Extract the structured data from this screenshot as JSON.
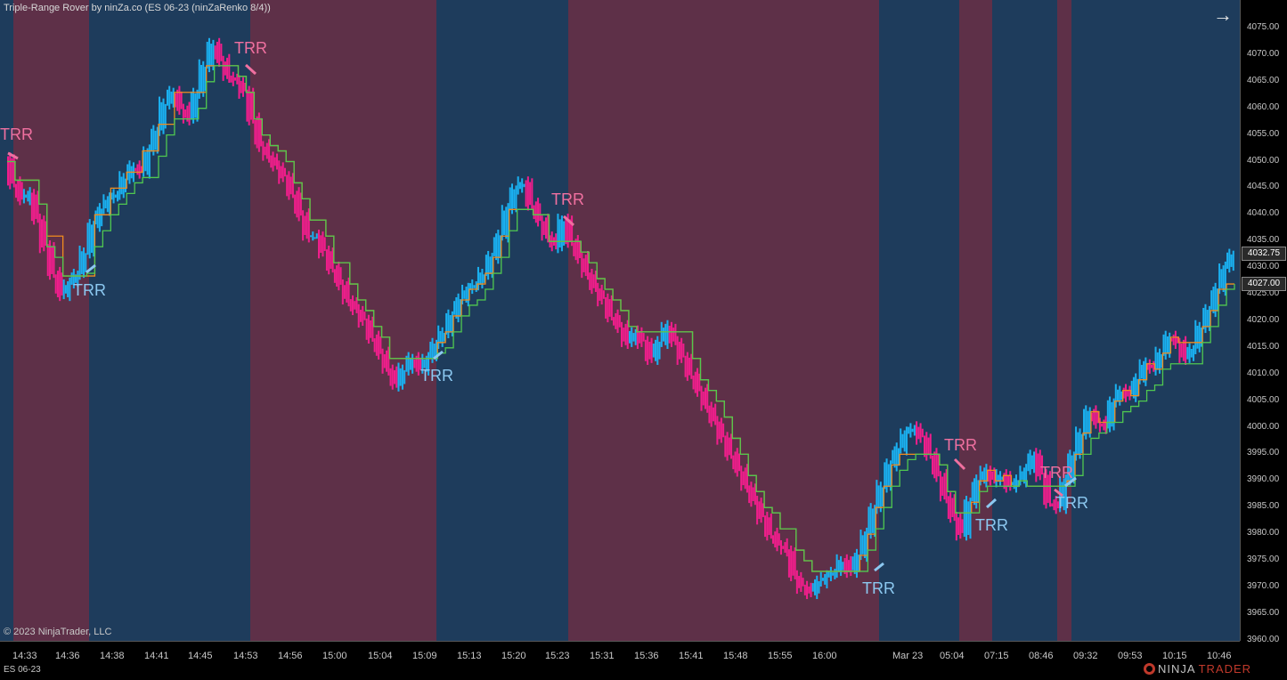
{
  "chart_title": "Triple-Range Rover by ninZa.co (ES 06-23 (ninZaRenko 8/4))",
  "copyright": "© 2023 NinjaTrader, LLC",
  "instrument": "ES 06-23",
  "logo": {
    "part1": "NINJA",
    "part2": "TRADER"
  },
  "colors": {
    "bull_background": "#1e3c5c",
    "bear_background": "#5e3048",
    "bull_bars": "#1ab0f0",
    "bear_bars": "#f01e8c",
    "upper_line": "#f08c1e",
    "lower_line": "#50c850",
    "bull_label": "#8cc8f0",
    "bear_label": "#f070a0"
  },
  "icons": {
    "navigate": "right-arrow-icon"
  },
  "price_axis": {
    "labels": [
      "4075.00",
      "4070.00",
      "4065.00",
      "4060.00",
      "4055.00",
      "4050.00",
      "4045.00",
      "4040.00",
      "4035.00",
      "4030.00",
      "4025.00",
      "4020.00",
      "4015.00",
      "4010.00",
      "4005.00",
      "4000.00",
      "3995.00",
      "3990.00",
      "3985.00",
      "3980.00",
      "3975.00",
      "3970.00",
      "3965.00",
      "3960.00"
    ],
    "current_price": "4032.75",
    "line_price": "4027.00"
  },
  "time_axis": {
    "labels": [
      "14:33",
      "14:36",
      "14:38",
      "14:41",
      "14:45",
      "14:53",
      "14:56",
      "15:00",
      "15:04",
      "15:09",
      "15:13",
      "15:20",
      "15:23",
      "15:31",
      "15:36",
      "15:41",
      "15:48",
      "15:55",
      "16:00",
      "Mar 23",
      "05:04",
      "07:15",
      "08:46",
      "09:32",
      "09:53",
      "10:15",
      "10:46"
    ]
  },
  "signals": [
    {
      "text": "TRR",
      "type": "bear"
    },
    {
      "text": "TRR",
      "type": "bull"
    },
    {
      "text": "TRR",
      "type": "bear"
    },
    {
      "text": "TRR",
      "type": "bull"
    },
    {
      "text": "TRR",
      "type": "bear"
    },
    {
      "text": "TRR",
      "type": "bull"
    },
    {
      "text": "TRR",
      "type": "bear"
    },
    {
      "text": "TRR",
      "type": "bull"
    },
    {
      "text": "TRR",
      "type": "bear"
    },
    {
      "text": "TRR",
      "type": "bull"
    }
  ],
  "chart_data": {
    "type": "line",
    "title": "Triple-Range Rover by ninZa.co (ES 06-23 (ninZaRenko 8/4))",
    "ylim": [
      3960,
      4077
    ],
    "grid": false,
    "series": [
      {
        "name": "price",
        "values": [
          4050.5,
          4046,
          4043,
          4044,
          4039,
          4034,
          4029,
          4025,
          4027,
          4029,
          4033,
          4038,
          4041,
          4043,
          4044,
          4047,
          4049,
          4048,
          4052,
          4056,
          4061,
          4063,
          4060,
          4058,
          4063,
          4068,
          4072,
          4069,
          4066,
          4065,
          4063,
          4058,
          4053,
          4051,
          4049,
          4047,
          4044,
          4040,
          4036,
          4036,
          4033,
          4030,
          4027,
          4024,
          4022,
          4020,
          4017,
          4014,
          4011,
          4008,
          4011,
          4013,
          4011,
          4013,
          4016,
          4018,
          4021,
          4024,
          4026,
          4027,
          4029,
          4032,
          4036,
          4041,
          4045,
          4046,
          4042,
          4039,
          4036,
          4034,
          4039,
          4035,
          4032,
          4029,
          4026,
          4024,
          4021,
          4019,
          4016,
          4018,
          4016,
          4013,
          4016,
          4019,
          4016,
          4013,
          4010,
          4007,
          4004,
          4001,
          3998,
          3995,
          3992,
          3989,
          3986,
          3983,
          3980,
          3978,
          3977,
          3972,
          3970,
          3969,
          3971,
          3972,
          3973,
          3975,
          3973,
          3976,
          3980,
          3985,
          3989,
          3993,
          3996,
          3999,
          4000,
          3998,
          3995,
          3991,
          3987,
          3983,
          3980,
          3986,
          3990,
          3992,
          3990,
          3991,
          3989,
          3990,
          3992,
          3995,
          3991,
          3986,
          3985,
          3990,
          3995,
          3999,
          4003,
          4001,
          4000,
          4005,
          4007,
          4006,
          4009,
          4012,
          4011,
          4014,
          4017,
          4016,
          4013,
          4015,
          4019,
          4022,
          4026,
          4030,
          4032.75
        ]
      },
      {
        "name": "upper",
        "values": [
          4050,
          4046.5,
          4046.5,
          4046.5,
          4042,
          4036,
          4036,
          4028.5,
          4028.5,
          4028.5,
          4028.5,
          4040,
          4040,
          4045,
          4045,
          4048,
          4048,
          4052,
          4052,
          4057,
          4057,
          4063,
          4063,
          4063,
          4063,
          4068,
          4068,
          4068,
          4068,
          4066,
          4063,
          4058,
          4055,
          4053,
          4052,
          4050,
          4046,
          4043,
          4039,
          4039,
          4036,
          4031,
          4031,
          4027,
          4024,
          4022,
          4019,
          4017,
          4013,
          4013,
          4013,
          4013,
          4013,
          4013,
          4016,
          4018,
          4021,
          4024,
          4026,
          4027,
          4029,
          4032,
          4036,
          4041,
          4041,
          4041,
          4040,
          4040,
          4035,
          4035,
          4035,
          4035,
          4033,
          4031,
          4028,
          4026,
          4024,
          4022,
          4019,
          4018,
          4018,
          4018,
          4018,
          4018,
          4018,
          4018,
          4013,
          4009,
          4007,
          4005,
          4002,
          3998,
          3995,
          3991,
          3988,
          3985,
          3984,
          3981,
          3981,
          3977,
          3975,
          3973,
          3973,
          3973,
          3973,
          3973,
          3973,
          3976,
          3980,
          3985,
          3989,
          3993,
          3995,
          3995,
          3995,
          3995,
          3995,
          3993,
          3988,
          3984,
          3984,
          3986,
          3990,
          3992,
          3990,
          3991,
          3989,
          3990,
          3989,
          3989,
          3989,
          3989,
          3989,
          3990,
          3995,
          3999,
          4003,
          4001,
          4001,
          4005,
          4007,
          4006,
          4009,
          4012,
          4011,
          4014,
          4017,
          4016,
          4016,
          4016,
          4019,
          4022,
          4026,
          4027,
          4027
        ]
      },
      {
        "name": "lower",
        "values": [
          4050,
          4046.5,
          4046.5,
          4046.5,
          4042,
          4034,
          4032,
          4028.5,
          4028.5,
          4028.5,
          4029,
          4034,
          4037,
          4040,
          4042,
          4044,
          4046,
          4047,
          4047,
          4051,
          4055,
          4058,
          4058,
          4058,
          4060,
          4065,
          4068,
          4068,
          4068,
          4066,
          4063,
          4058,
          4055,
          4053,
          4052,
          4050,
          4046,
          4043,
          4039,
          4039,
          4036,
          4031,
          4031,
          4027,
          4024,
          4022,
          4019,
          4017,
          4013,
          4013,
          4013,
          4013,
          4013,
          4013,
          4014,
          4015,
          4018,
          4021,
          4023,
          4024,
          4026,
          4029,
          4032,
          4037,
          4041,
          4041,
          4040,
          4040,
          4035,
          4035,
          4035,
          4035,
          4033,
          4031,
          4028,
          4026,
          4024,
          4022,
          4019,
          4018,
          4018,
          4018,
          4018,
          4018,
          4018,
          4018,
          4013,
          4009,
          4007,
          4005,
          4002,
          3998,
          3995,
          3991,
          3988,
          3985,
          3984,
          3981,
          3981,
          3977,
          3975,
          3973,
          3973,
          3973,
          3973,
          3973,
          3973,
          3973,
          3977,
          3981,
          3985,
          3989,
          3992,
          3994,
          3995,
          3995,
          3995,
          3993,
          3988,
          3984,
          3984,
          3984,
          3988,
          3989,
          3989,
          3989,
          3989,
          3990,
          3989,
          3989,
          3989,
          3989,
          3989,
          3989,
          3991,
          3995,
          3998,
          3999,
          4001,
          4001,
          4003,
          4004,
          4005,
          4007,
          4008,
          4011,
          4012,
          4012,
          4012,
          4012,
          4016,
          4019,
          4023,
          4026,
          4027
        ]
      }
    ]
  }
}
